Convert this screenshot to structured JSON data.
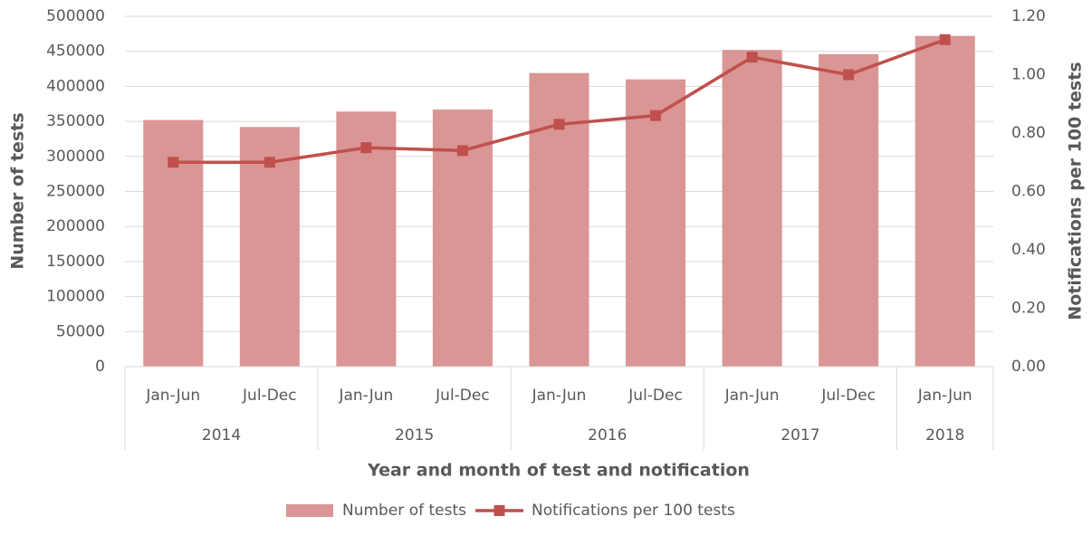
{
  "chart_data": {
    "type": "bar",
    "x_label": "Year and month of test and notification",
    "y_label": "Number of tests",
    "y2_label": "Notifications per 100 tests",
    "categories": [
      "Jan-Jun",
      "Jul-Dec",
      "Jan-Jun",
      "Jul-Dec",
      "Jan-Jun",
      "Jul-Dec",
      "Jan-Jun",
      "Jul-Dec",
      "Jan-Jun"
    ],
    "groups": [
      {
        "name": "2014",
        "count": 2
      },
      {
        "name": "2015",
        "count": 2
      },
      {
        "name": "2016",
        "count": 2
      },
      {
        "name": "2017",
        "count": 2
      },
      {
        "name": "2018",
        "count": 1
      }
    ],
    "series": [
      {
        "name": "Number of tests",
        "type": "bar",
        "axis": "y",
        "color": "#d99694",
        "values": [
          352000,
          342000,
          364000,
          367000,
          419000,
          410000,
          452000,
          446000,
          472000
        ]
      },
      {
        "name": "Notifications per 100 tests",
        "type": "line",
        "axis": "y2",
        "color": "#c0504d",
        "values": [
          0.7,
          0.7,
          0.75,
          0.74,
          0.83,
          0.86,
          1.06,
          1.0,
          1.12
        ]
      }
    ],
    "ylim": [
      0,
      500000
    ],
    "yticks": [
      0,
      50000,
      100000,
      150000,
      200000,
      250000,
      300000,
      350000,
      400000,
      450000,
      500000
    ],
    "y2lim": [
      0,
      1.2
    ],
    "y2ticks": [
      {
        "value": 0,
        "label": "0.00"
      },
      {
        "value": 0.2,
        "label": "0.20"
      },
      {
        "value": 0.4,
        "label": "0.40"
      },
      {
        "value": 0.6,
        "label": "0.60"
      },
      {
        "value": 0.8,
        "label": "0.80"
      },
      {
        "value": 1.0,
        "label": "1.00"
      },
      {
        "value": 1.2,
        "label": "1.20"
      }
    ],
    "grid": true,
    "legend": "bottom"
  }
}
